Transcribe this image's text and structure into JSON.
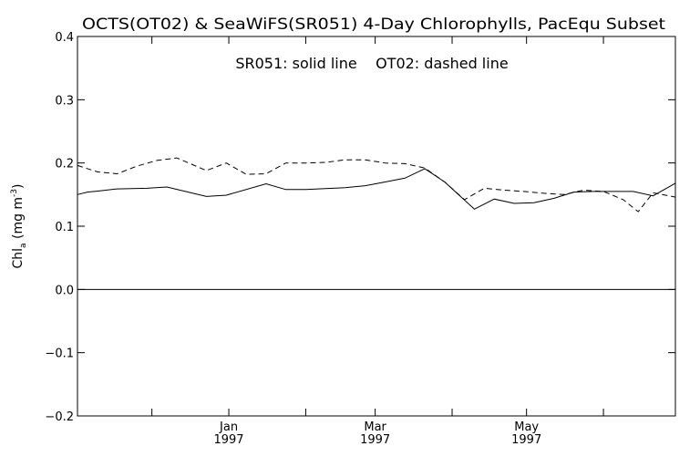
{
  "chart_data": {
    "type": "line",
    "title": "OCTS(OT02) & SeaWiFS(SR051) 4-Day Chlorophylls, PacEqu Subset",
    "annotation": "SR051: solid line    OT02: dashed line",
    "ylabel": "Chl",
    "ylabel_sub": "a",
    "ylabel_units_prefix": " (mg m",
    "ylabel_units_sup": "-3",
    "ylabel_units_suffix": ")",
    "xlabel": "",
    "x_unit": "date",
    "xlim": [
      "1996-11-01",
      "1997-06-30"
    ],
    "ylim": [
      -0.2,
      0.4
    ],
    "yticks": [
      {
        "value": -0.2,
        "label": "−0.2"
      },
      {
        "value": -0.1,
        "label": "−0.1"
      },
      {
        "value": 0.0,
        "label": "0.0"
      },
      {
        "value": 0.1,
        "label": "0.1"
      },
      {
        "value": 0.2,
        "label": "0.2"
      },
      {
        "value": 0.3,
        "label": "0.3"
      },
      {
        "value": 0.4,
        "label": "0.4"
      }
    ],
    "xticks": [
      {
        "date": "1996-12-01",
        "label": "",
        "year": ""
      },
      {
        "date": "1997-01-01",
        "label": "Jan",
        "year": "1997"
      },
      {
        "date": "1997-02-01",
        "label": "",
        "year": ""
      },
      {
        "date": "1997-03-01",
        "label": "Mar",
        "year": "1997"
      },
      {
        "date": "1997-04-01",
        "label": "",
        "year": ""
      },
      {
        "date": "1997-05-01",
        "label": "May",
        "year": "1997"
      },
      {
        "date": "1997-06-01",
        "label": "",
        "year": ""
      }
    ],
    "zero_line": 0.0,
    "grid": false,
    "series": [
      {
        "name": "SR051",
        "style": "solid",
        "color": "#000000",
        "x": [
          "1996-11-01",
          "1996-11-05",
          "1996-11-10",
          "1996-11-17",
          "1996-11-29",
          "1996-12-07",
          "1996-12-23",
          "1996-12-31",
          "1997-01-16",
          "1997-01-24",
          "1997-02-01",
          "1997-02-17",
          "1997-02-25",
          "1997-03-05",
          "1997-03-13",
          "1997-03-21",
          "1997-03-29",
          "1997-04-10",
          "1997-04-18",
          "1997-04-26",
          "1997-05-04",
          "1997-05-12",
          "1997-05-20",
          "1997-05-28",
          "1997-06-05",
          "1997-06-13",
          "1997-06-21",
          "1997-06-30"
        ],
        "y": [
          0.15,
          0.154,
          0.156,
          0.159,
          0.16,
          0.162,
          0.147,
          0.149,
          0.167,
          0.158,
          0.158,
          0.161,
          0.164,
          0.17,
          0.176,
          0.191,
          0.17,
          0.127,
          0.143,
          0.136,
          0.137,
          0.144,
          0.154,
          0.155,
          0.155,
          0.155,
          0.148,
          0.168
        ]
      },
      {
        "name": "OT02",
        "style": "dashed",
        "color": "#000000",
        "x": [
          "1996-11-01",
          "1996-11-09",
          "1996-11-17",
          "1996-11-25",
          "1996-12-03",
          "1996-12-11",
          "1996-12-23",
          "1996-12-31",
          "1997-01-08",
          "1997-01-16",
          "1997-01-24",
          "1997-02-01",
          "1997-02-09",
          "1997-02-17",
          "1997-02-25",
          "1997-03-05",
          "1997-03-13",
          "1997-03-21",
          "1997-03-29",
          "1997-04-06",
          "1997-04-14",
          "1997-04-22",
          "1997-04-30",
          "1997-05-08",
          "1997-05-16",
          "1997-05-24",
          "1997-06-01",
          "1997-06-09",
          "1997-06-15",
          "1997-06-21",
          "1997-06-30"
        ],
        "y": [
          0.196,
          0.186,
          0.183,
          0.195,
          0.204,
          0.208,
          0.188,
          0.2,
          0.182,
          0.183,
          0.2,
          0.2,
          0.201,
          0.205,
          0.205,
          0.2,
          0.199,
          0.192,
          0.17,
          0.142,
          0.16,
          0.157,
          0.155,
          0.152,
          0.15,
          0.157,
          0.155,
          0.142,
          0.123,
          0.153,
          0.146
        ]
      }
    ]
  }
}
